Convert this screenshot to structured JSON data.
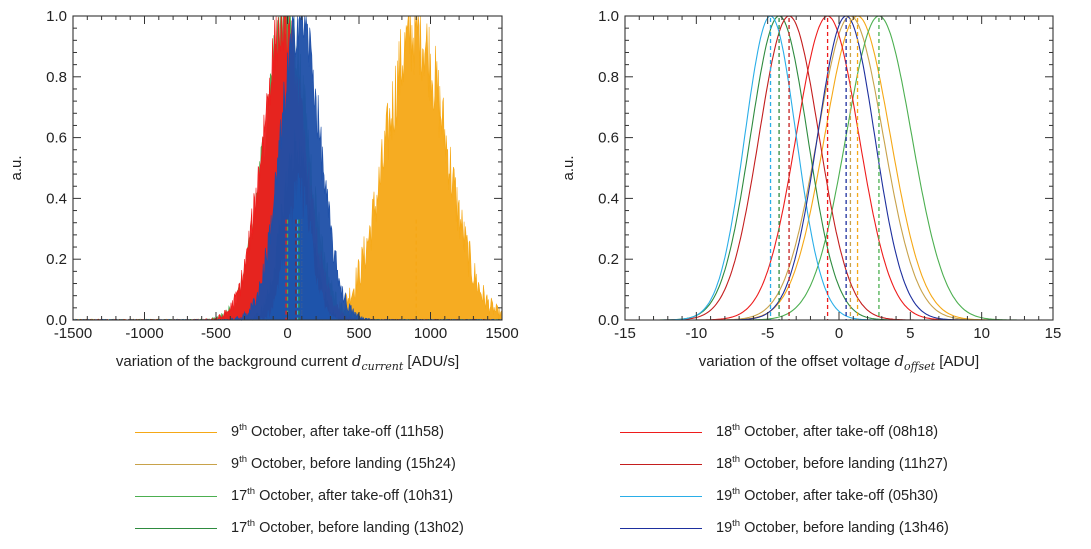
{
  "chart_data": [
    {
      "type": "area",
      "ylabel": "a.u.",
      "xlabel_prefix": "variation of the background current ",
      "xlabel_var": "d",
      "xlabel_sub": "current",
      "xlabel_unit": " [ADU/s]",
      "xlim": [
        -1500,
        1500
      ],
      "ylim": [
        0,
        1
      ],
      "xticks": [
        "-1500",
        "-1000",
        "-500",
        "0",
        "500",
        "1000",
        "1500"
      ],
      "yticks": [
        "0.0",
        "0.2",
        "0.4",
        "0.6",
        "0.8",
        "1.0"
      ],
      "series": [
        {
          "name": "9th October, after take-off (11h58)",
          "center": 900,
          "sigma": 210,
          "peak": 0.95,
          "color": "#f5a816",
          "noise": 0.07
        },
        {
          "name": "9th October, before landing (15h24)",
          "center": 100,
          "sigma": 80,
          "peak": 0.3,
          "color": "#c8a24a",
          "noise": 0.05
        },
        {
          "name": "17th October, after take-off (10h31)",
          "center": -10,
          "sigma": 150,
          "peak": 1.0,
          "color": "#4caf50",
          "noise": 0.05
        },
        {
          "name": "17th October, before landing (13h02)",
          "center": 70,
          "sigma": 95,
          "peak": 0.5,
          "color": "#2e8b3f",
          "noise": 0.05
        },
        {
          "name": "18th October, after take-off (08h18)",
          "center": -30,
          "sigma": 145,
          "peak": 0.97,
          "color": "#ee1c1c",
          "noise": 0.05
        },
        {
          "name": "18th October, before landing (11h27)",
          "center": 60,
          "sigma": 100,
          "peak": 0.56,
          "color": "#9b1010",
          "noise": 0.05
        },
        {
          "name": "19th October, after take-off (05h30)",
          "center": 80,
          "sigma": 85,
          "peak": 0.42,
          "color": "#2aaee8",
          "noise": 0.05
        },
        {
          "name": "19th October, before landing (13h46)",
          "center": 90,
          "sigma": 135,
          "peak": 1.0,
          "color": "#1d4fa8",
          "noise": 0.05
        }
      ],
      "vlines": [
        900,
        100,
        0,
        80,
        -10,
        60,
        70,
        100
      ],
      "grid": false
    },
    {
      "type": "line",
      "ylabel": "a.u.",
      "xlabel_prefix": "variation of the offset voltage ",
      "xlabel_var": "d",
      "xlabel_sub": "offset",
      "xlabel_unit": " [ADU]",
      "xlim": [
        -15,
        15
      ],
      "ylim": [
        0,
        1
      ],
      "xticks": [
        "-15",
        "-10",
        "-5",
        "0",
        "5",
        "10",
        "15"
      ],
      "yticks": [
        "0.0",
        "0.2",
        "0.4",
        "0.6",
        "0.8",
        "1.0"
      ],
      "series": [
        {
          "name": "9th October, after take-off (11h58)",
          "center": 1.3,
          "sigma": 2.3,
          "color": "#f5a816"
        },
        {
          "name": "9th October, before landing (15h24)",
          "center": 0.8,
          "sigma": 2.3,
          "color": "#c8a24a"
        },
        {
          "name": "17th October, after take-off (10h31)",
          "center": 2.8,
          "sigma": 2.3,
          "color": "#4caf50"
        },
        {
          "name": "17th October, before landing (13h02)",
          "center": -4.2,
          "sigma": 2.0,
          "color": "#2e8b3f"
        },
        {
          "name": "18th October, after take-off (08h18)",
          "center": -0.8,
          "sigma": 2.2,
          "color": "#ee1c1c"
        },
        {
          "name": "18th October, before landing (11h27)",
          "center": -3.5,
          "sigma": 2.1,
          "color": "#c41e1e"
        },
        {
          "name": "19th October, after take-off (05h30)",
          "center": -4.8,
          "sigma": 1.8,
          "color": "#2aaee8"
        },
        {
          "name": "19th October, before landing (13h46)",
          "center": 0.5,
          "sigma": 2.0,
          "color": "#1d2f9e"
        }
      ],
      "grid": false
    }
  ],
  "legend": [
    {
      "day": "9",
      "ord": "th",
      "text": " October, after take-off (11h58)",
      "color": "#f5a816"
    },
    {
      "day": "9",
      "ord": "th",
      "text": " October, before landing  (15h24)",
      "color": "#c8a24a"
    },
    {
      "day": "17",
      "ord": "th",
      "text": " October, after take-off (10h31)",
      "color": "#4caf50"
    },
    {
      "day": "17",
      "ord": "th",
      "text": " October, before landing  (13h02)",
      "color": "#2e8b3f"
    },
    {
      "day": "18",
      "ord": "th",
      "text": " October, after take-off (08h18)",
      "color": "#ee1c1c"
    },
    {
      "day": "18",
      "ord": "th",
      "text": " October, before landing  (11h27)",
      "color": "#c41e1e"
    },
    {
      "day": "19",
      "ord": "th",
      "text": " October, after take-off (05h30)",
      "color": "#2aaee8"
    },
    {
      "day": "19",
      "ord": "th",
      "text": " October, before landing  (13h46)",
      "color": "#1d2f9e"
    }
  ]
}
